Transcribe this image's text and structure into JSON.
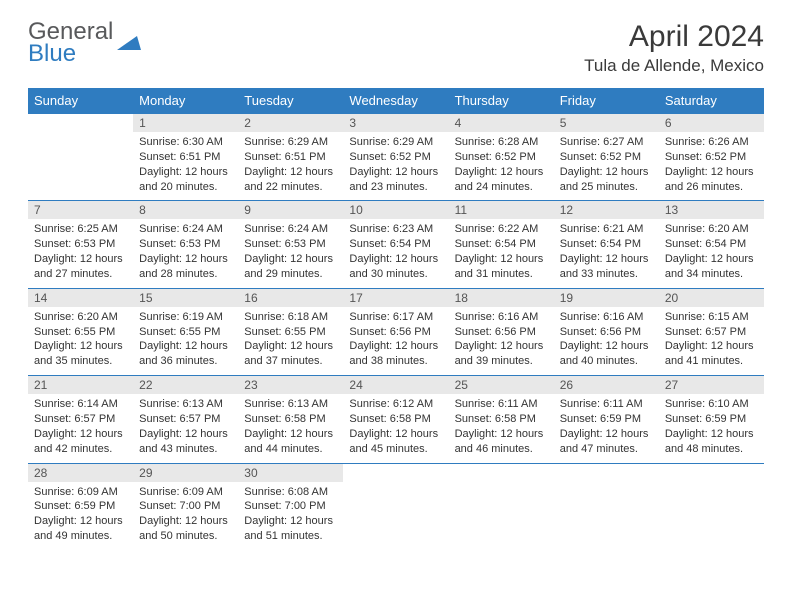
{
  "logo": {
    "text_gray": "General",
    "text_blue": "Blue"
  },
  "title": "April 2024",
  "location": "Tula de Allende, Mexico",
  "weekdays": [
    "Sunday",
    "Monday",
    "Tuesday",
    "Wednesday",
    "Thursday",
    "Friday",
    "Saturday"
  ],
  "colors": {
    "header_bg": "#2f7cc0",
    "header_text": "#ffffff",
    "daynum_bg": "#e8e8e8",
    "border": "#2f7cc0",
    "body_text": "#333333",
    "logo_gray": "#58595b",
    "logo_blue": "#2f7cc0"
  },
  "typography": {
    "title_fontsize": 30,
    "location_fontsize": 17,
    "weekday_fontsize": 13,
    "daynum_fontsize": 12,
    "cell_fontsize": 11
  },
  "weeks": [
    [
      null,
      {
        "n": "1",
        "sr": "Sunrise: 6:30 AM",
        "ss": "Sunset: 6:51 PM",
        "d1": "Daylight: 12 hours",
        "d2": "and 20 minutes."
      },
      {
        "n": "2",
        "sr": "Sunrise: 6:29 AM",
        "ss": "Sunset: 6:51 PM",
        "d1": "Daylight: 12 hours",
        "d2": "and 22 minutes."
      },
      {
        "n": "3",
        "sr": "Sunrise: 6:29 AM",
        "ss": "Sunset: 6:52 PM",
        "d1": "Daylight: 12 hours",
        "d2": "and 23 minutes."
      },
      {
        "n": "4",
        "sr": "Sunrise: 6:28 AM",
        "ss": "Sunset: 6:52 PM",
        "d1": "Daylight: 12 hours",
        "d2": "and 24 minutes."
      },
      {
        "n": "5",
        "sr": "Sunrise: 6:27 AM",
        "ss": "Sunset: 6:52 PM",
        "d1": "Daylight: 12 hours",
        "d2": "and 25 minutes."
      },
      {
        "n": "6",
        "sr": "Sunrise: 6:26 AM",
        "ss": "Sunset: 6:52 PM",
        "d1": "Daylight: 12 hours",
        "d2": "and 26 minutes."
      }
    ],
    [
      {
        "n": "7",
        "sr": "Sunrise: 6:25 AM",
        "ss": "Sunset: 6:53 PM",
        "d1": "Daylight: 12 hours",
        "d2": "and 27 minutes."
      },
      {
        "n": "8",
        "sr": "Sunrise: 6:24 AM",
        "ss": "Sunset: 6:53 PM",
        "d1": "Daylight: 12 hours",
        "d2": "and 28 minutes."
      },
      {
        "n": "9",
        "sr": "Sunrise: 6:24 AM",
        "ss": "Sunset: 6:53 PM",
        "d1": "Daylight: 12 hours",
        "d2": "and 29 minutes."
      },
      {
        "n": "10",
        "sr": "Sunrise: 6:23 AM",
        "ss": "Sunset: 6:54 PM",
        "d1": "Daylight: 12 hours",
        "d2": "and 30 minutes."
      },
      {
        "n": "11",
        "sr": "Sunrise: 6:22 AM",
        "ss": "Sunset: 6:54 PM",
        "d1": "Daylight: 12 hours",
        "d2": "and 31 minutes."
      },
      {
        "n": "12",
        "sr": "Sunrise: 6:21 AM",
        "ss": "Sunset: 6:54 PM",
        "d1": "Daylight: 12 hours",
        "d2": "and 33 minutes."
      },
      {
        "n": "13",
        "sr": "Sunrise: 6:20 AM",
        "ss": "Sunset: 6:54 PM",
        "d1": "Daylight: 12 hours",
        "d2": "and 34 minutes."
      }
    ],
    [
      {
        "n": "14",
        "sr": "Sunrise: 6:20 AM",
        "ss": "Sunset: 6:55 PM",
        "d1": "Daylight: 12 hours",
        "d2": "and 35 minutes."
      },
      {
        "n": "15",
        "sr": "Sunrise: 6:19 AM",
        "ss": "Sunset: 6:55 PM",
        "d1": "Daylight: 12 hours",
        "d2": "and 36 minutes."
      },
      {
        "n": "16",
        "sr": "Sunrise: 6:18 AM",
        "ss": "Sunset: 6:55 PM",
        "d1": "Daylight: 12 hours",
        "d2": "and 37 minutes."
      },
      {
        "n": "17",
        "sr": "Sunrise: 6:17 AM",
        "ss": "Sunset: 6:56 PM",
        "d1": "Daylight: 12 hours",
        "d2": "and 38 minutes."
      },
      {
        "n": "18",
        "sr": "Sunrise: 6:16 AM",
        "ss": "Sunset: 6:56 PM",
        "d1": "Daylight: 12 hours",
        "d2": "and 39 minutes."
      },
      {
        "n": "19",
        "sr": "Sunrise: 6:16 AM",
        "ss": "Sunset: 6:56 PM",
        "d1": "Daylight: 12 hours",
        "d2": "and 40 minutes."
      },
      {
        "n": "20",
        "sr": "Sunrise: 6:15 AM",
        "ss": "Sunset: 6:57 PM",
        "d1": "Daylight: 12 hours",
        "d2": "and 41 minutes."
      }
    ],
    [
      {
        "n": "21",
        "sr": "Sunrise: 6:14 AM",
        "ss": "Sunset: 6:57 PM",
        "d1": "Daylight: 12 hours",
        "d2": "and 42 minutes."
      },
      {
        "n": "22",
        "sr": "Sunrise: 6:13 AM",
        "ss": "Sunset: 6:57 PM",
        "d1": "Daylight: 12 hours",
        "d2": "and 43 minutes."
      },
      {
        "n": "23",
        "sr": "Sunrise: 6:13 AM",
        "ss": "Sunset: 6:58 PM",
        "d1": "Daylight: 12 hours",
        "d2": "and 44 minutes."
      },
      {
        "n": "24",
        "sr": "Sunrise: 6:12 AM",
        "ss": "Sunset: 6:58 PM",
        "d1": "Daylight: 12 hours",
        "d2": "and 45 minutes."
      },
      {
        "n": "25",
        "sr": "Sunrise: 6:11 AM",
        "ss": "Sunset: 6:58 PM",
        "d1": "Daylight: 12 hours",
        "d2": "and 46 minutes."
      },
      {
        "n": "26",
        "sr": "Sunrise: 6:11 AM",
        "ss": "Sunset: 6:59 PM",
        "d1": "Daylight: 12 hours",
        "d2": "and 47 minutes."
      },
      {
        "n": "27",
        "sr": "Sunrise: 6:10 AM",
        "ss": "Sunset: 6:59 PM",
        "d1": "Daylight: 12 hours",
        "d2": "and 48 minutes."
      }
    ],
    [
      {
        "n": "28",
        "sr": "Sunrise: 6:09 AM",
        "ss": "Sunset: 6:59 PM",
        "d1": "Daylight: 12 hours",
        "d2": "and 49 minutes."
      },
      {
        "n": "29",
        "sr": "Sunrise: 6:09 AM",
        "ss": "Sunset: 7:00 PM",
        "d1": "Daylight: 12 hours",
        "d2": "and 50 minutes."
      },
      {
        "n": "30",
        "sr": "Sunrise: 6:08 AM",
        "ss": "Sunset: 7:00 PM",
        "d1": "Daylight: 12 hours",
        "d2": "and 51 minutes."
      },
      null,
      null,
      null,
      null
    ]
  ]
}
